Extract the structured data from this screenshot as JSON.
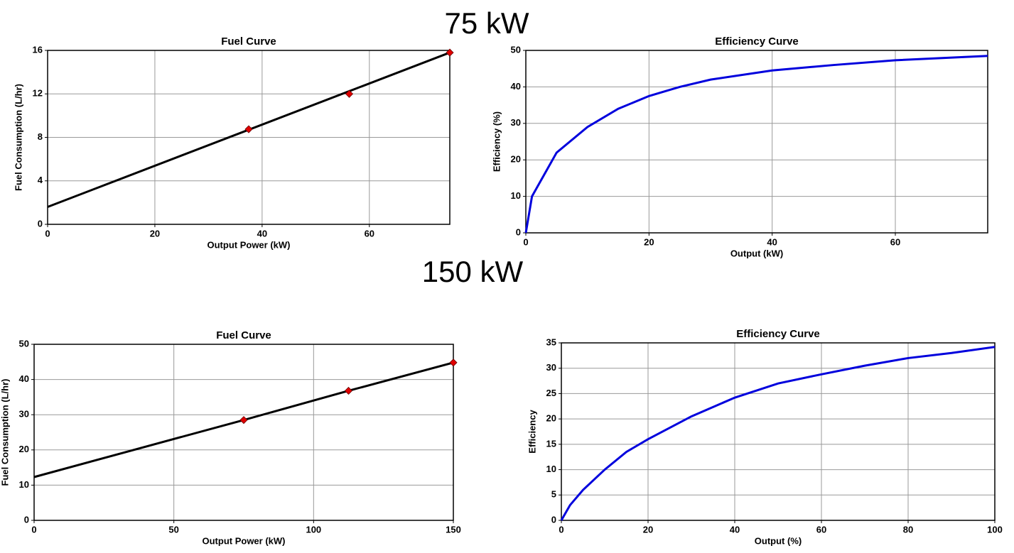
{
  "headings": [
    "75 kW",
    "150 kW"
  ],
  "chart_data": [
    {
      "type": "line",
      "title": "Fuel Curve",
      "x_label": "Output Power (kW)",
      "y_label": "Fuel Consumption (L/hr)",
      "xlim": [
        0,
        75
      ],
      "ylim": [
        0,
        16
      ],
      "xticks": [
        0,
        20,
        40,
        60
      ],
      "yticks": [
        0,
        4,
        8,
        12,
        16
      ],
      "grid": true,
      "series": [
        {
          "mode": "line",
          "color": "#000000",
          "x": [
            0,
            75
          ],
          "values": [
            1.6,
            15.8
          ]
        },
        {
          "mode": "markers",
          "color": "#e00000",
          "x": [
            37.5,
            56.25,
            75
          ],
          "values": [
            8.75,
            12,
            15.8
          ]
        }
      ]
    },
    {
      "type": "line",
      "title": "Efficiency Curve",
      "x_label": "Output (kW)",
      "y_label": "Efficiency (%)",
      "xlim": [
        0,
        75
      ],
      "ylim": [
        0,
        50
      ],
      "xticks": [
        0,
        20,
        40,
        60
      ],
      "yticks": [
        0,
        10,
        20,
        30,
        40,
        50
      ],
      "grid": true,
      "series": [
        {
          "mode": "line",
          "color": "#0000dd",
          "x": [
            0,
            1,
            3,
            5,
            10,
            15,
            20,
            25,
            30,
            40,
            50,
            60,
            75
          ],
          "values": [
            0,
            10,
            16,
            22,
            29,
            34,
            37.5,
            40,
            42,
            44.5,
            46,
            47.3,
            48.5
          ]
        }
      ]
    },
    {
      "type": "line",
      "title": "Fuel Curve",
      "x_label": "Output Power (kW)",
      "y_label": "Fuel Consumption (L/hr)",
      "xlim": [
        0,
        150
      ],
      "ylim": [
        0,
        50
      ],
      "xticks": [
        0,
        50,
        100,
        150
      ],
      "yticks": [
        0,
        10,
        20,
        30,
        40,
        50
      ],
      "grid": true,
      "series": [
        {
          "mode": "line",
          "color": "#000000",
          "x": [
            0,
            75,
            112.5,
            150
          ],
          "values": [
            12.3,
            28.5,
            36.8,
            44.8
          ]
        },
        {
          "mode": "markers",
          "color": "#e00000",
          "x": [
            75,
            112.5,
            150
          ],
          "values": [
            28.5,
            36.8,
            44.8
          ]
        }
      ]
    },
    {
      "type": "line",
      "title": "Efficiency Curve",
      "x_label": "Output (%)",
      "y_label": "Efficiency",
      "xlim": [
        0,
        100
      ],
      "ylim": [
        0,
        35
      ],
      "xticks": [
        0,
        20,
        40,
        60,
        80,
        100
      ],
      "yticks": [
        0,
        5,
        10,
        15,
        20,
        25,
        30,
        35
      ],
      "grid": true,
      "series": [
        {
          "mode": "line",
          "color": "#0000dd",
          "x": [
            0,
            1,
            2,
            5,
            10,
            15,
            20,
            30,
            40,
            50,
            60,
            70,
            80,
            90,
            100
          ],
          "values": [
            0,
            1.5,
            3,
            6,
            10,
            13.5,
            16,
            20.5,
            24.2,
            27,
            28.8,
            30.5,
            32,
            33,
            34.2
          ]
        }
      ]
    }
  ]
}
